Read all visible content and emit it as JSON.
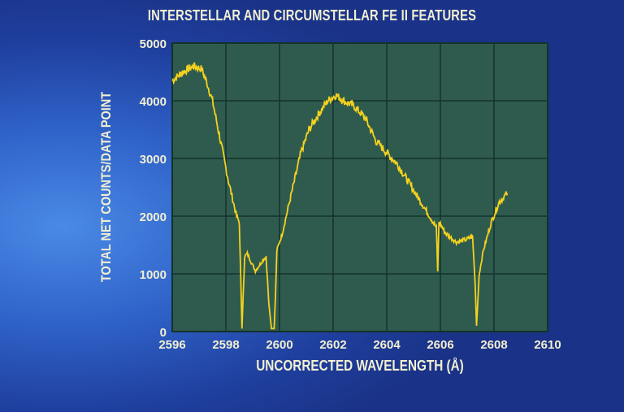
{
  "chart_data": {
    "type": "line",
    "title": "INTERSTELLAR AND CIRCUMSTELLAR FE II FEATURES",
    "xlabel": "UNCORRECTED WAVELENGTH (Å)",
    "ylabel": "TOTAL NET COUNTS/DATA POINT",
    "xlim": [
      2596,
      2610
    ],
    "ylim": [
      0,
      5000
    ],
    "xticks": [
      "2596",
      "2598",
      "2600",
      "2602",
      "2604",
      "2606",
      "2608",
      "2610"
    ],
    "yticks": [
      "0",
      "1000",
      "2000",
      "3000",
      "4000",
      "5000"
    ],
    "grid": true,
    "colors": {
      "line": "#f5d21e",
      "plot_bg": "#2e5b4e",
      "grid": "#15322b"
    },
    "series": [
      {
        "name": "spectrum",
        "x": [
          2596.0,
          2596.4,
          2596.8,
          2597.1,
          2597.3,
          2597.5,
          2597.8,
          2598.1,
          2598.4,
          2598.5,
          2598.55,
          2598.6,
          2598.7,
          2598.8,
          2599.1,
          2599.4,
          2599.5,
          2599.6,
          2599.7,
          2599.8,
          2599.85,
          2599.9,
          2600.1,
          2600.4,
          2600.8,
          2601.1,
          2601.5,
          2601.8,
          2602.1,
          2602.4,
          2602.8,
          2603.2,
          2603.6,
          2604.0,
          2604.4,
          2604.8,
          2605.2,
          2605.6,
          2605.85,
          2605.9,
          2605.95,
          2606.2,
          2606.6,
          2607.0,
          2607.2,
          2607.3,
          2607.35,
          2607.45,
          2607.6,
          2607.9,
          2608.2,
          2608.5
        ],
        "y": [
          4350,
          4500,
          4600,
          4550,
          4300,
          4000,
          3300,
          2600,
          2000,
          1900,
          1000,
          50,
          1300,
          1350,
          1050,
          1250,
          1300,
          500,
          50,
          50,
          600,
          1400,
          1700,
          2300,
          3100,
          3500,
          3800,
          4000,
          4100,
          4000,
          3900,
          3700,
          3300,
          3100,
          2900,
          2600,
          2300,
          2000,
          1800,
          1050,
          1900,
          1700,
          1550,
          1600,
          1650,
          800,
          100,
          1000,
          1400,
          1900,
          2250,
          2400
        ]
      }
    ]
  }
}
